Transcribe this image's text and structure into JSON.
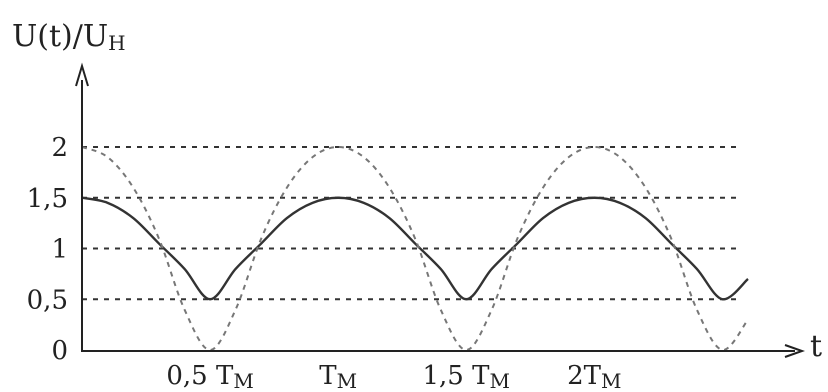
{
  "chart_data": {
    "type": "line",
    "title": "",
    "ylabel": "U(t)/U",
    "ylabel_sub": "H",
    "xlabel": "t",
    "xlim": [
      0,
      2.6
    ],
    "ylim": [
      0,
      2
    ],
    "yticks": [
      {
        "value": 0,
        "label": "0"
      },
      {
        "value": 0.5,
        "label": "0,5"
      },
      {
        "value": 1,
        "label": "1"
      },
      {
        "value": 1.5,
        "label": "1,5"
      },
      {
        "value": 2,
        "label": "2"
      }
    ],
    "xticks": [
      {
        "value": 0.5,
        "label": "0,5 T",
        "sub": "M"
      },
      {
        "value": 1,
        "label": "T",
        "sub": "M"
      },
      {
        "value": 1.5,
        "label": "1,5 T",
        "sub": "M"
      },
      {
        "value": 2,
        "label": "2T",
        "sub": "M"
      }
    ],
    "gridlines_y": [
      0.5,
      1,
      1.5,
      2
    ],
    "grid_style": "dashed",
    "series": [
      {
        "style": "solid",
        "color": "#333333",
        "x": [
          0,
          0.1,
          0.2,
          0.3,
          0.4,
          0.5,
          0.6,
          0.7,
          0.8,
          0.9,
          1.0,
          1.1,
          1.2,
          1.3,
          1.4,
          1.5,
          1.6,
          1.7,
          1.8,
          1.9,
          2.0,
          2.1,
          2.2,
          2.3,
          2.4,
          2.5,
          2.6
        ],
        "values": [
          1.5,
          1.45,
          1.3,
          1.05,
          0.8,
          0.5,
          0.8,
          1.05,
          1.3,
          1.45,
          1.5,
          1.45,
          1.3,
          1.05,
          0.8,
          0.5,
          0.8,
          1.05,
          1.3,
          1.45,
          1.5,
          1.45,
          1.3,
          1.05,
          0.8,
          0.5,
          0.7
        ]
      },
      {
        "style": "dashed",
        "color": "#777777",
        "x": [
          0,
          0.1,
          0.2,
          0.3,
          0.4,
          0.5,
          0.6,
          0.7,
          0.8,
          0.9,
          1.0,
          1.1,
          1.2,
          1.3,
          1.4,
          1.5,
          1.6,
          1.7,
          1.8,
          1.9,
          2.0,
          2.1,
          2.2,
          2.3,
          2.4,
          2.5,
          2.6
        ],
        "values": [
          2.0,
          1.9,
          1.6,
          1.1,
          0.4,
          0.0,
          0.4,
          1.1,
          1.6,
          1.9,
          2.0,
          1.9,
          1.6,
          1.1,
          0.4,
          0.0,
          0.4,
          1.1,
          1.6,
          1.9,
          2.0,
          1.9,
          1.6,
          1.1,
          0.4,
          0.0,
          0.3
        ]
      }
    ]
  }
}
